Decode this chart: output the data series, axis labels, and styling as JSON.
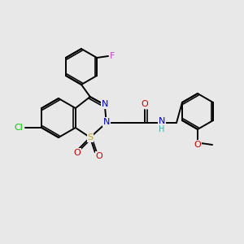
{
  "bg_color": "#e8e8e8",
  "bond_color": "#000000",
  "lw": 1.4,
  "fs": 9,
  "colors": {
    "Cl": "#00cc00",
    "F": "#cc44cc",
    "N": "#0000cc",
    "O": "#cc0000",
    "S": "#ccaa00",
    "H": "#44aaaa"
  }
}
